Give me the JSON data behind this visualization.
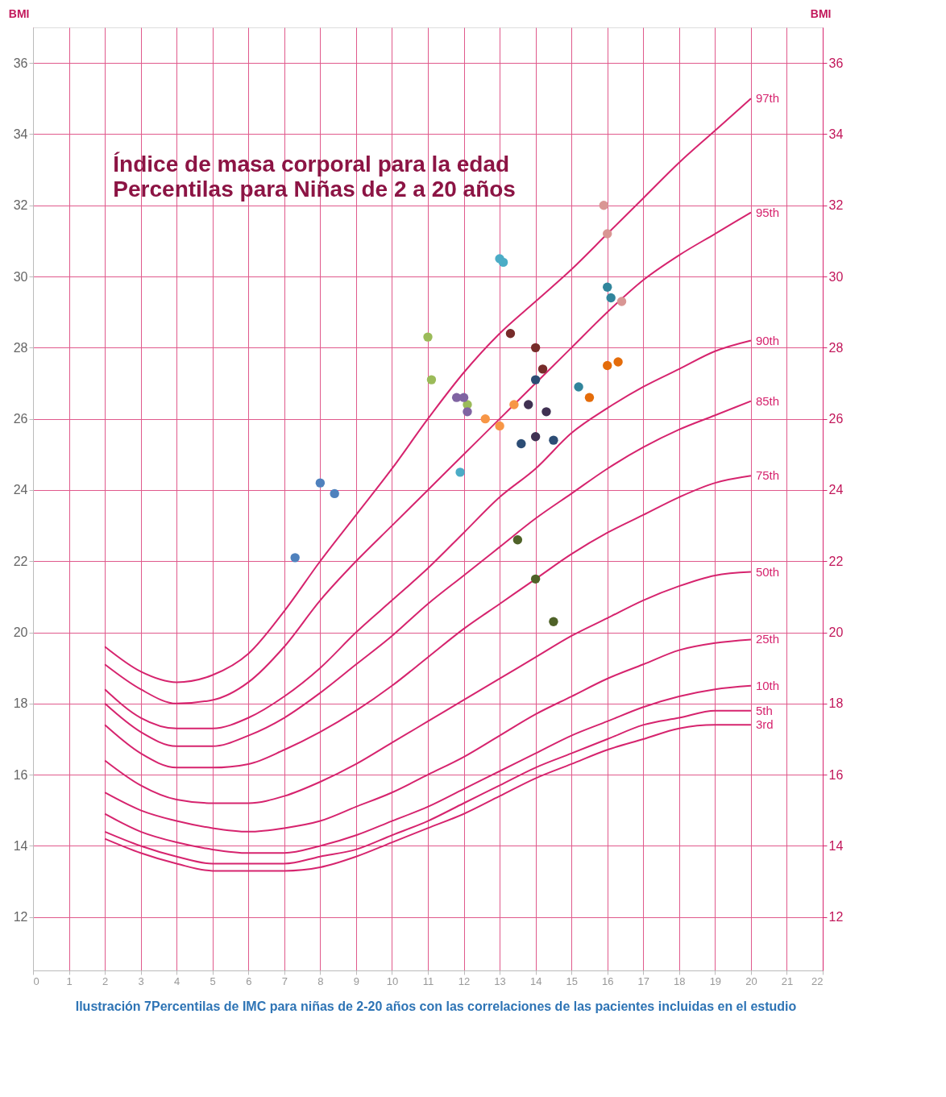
{
  "chart_data": {
    "type": "line",
    "title": "Índice de masa corporal para la edad",
    "subtitle": "Percentilas para  Niñas de 2 a 20 años",
    "ylabel": "BMI",
    "y2label": "BMI",
    "xlim": [
      0,
      22
    ],
    "xticks": [
      0,
      1,
      2,
      3,
      4,
      5,
      6,
      7,
      8,
      9,
      10,
      11,
      12,
      13,
      14,
      15,
      16,
      17,
      18,
      19,
      20,
      21,
      22
    ],
    "ylim": [
      10.5,
      37
    ],
    "yticks": [
      12,
      14,
      16,
      18,
      20,
      22,
      24,
      26,
      28,
      30,
      32,
      34,
      36
    ],
    "y2lim": [
      10.5,
      37
    ],
    "y2ticks": [
      12,
      14,
      16,
      18,
      20,
      22,
      24,
      26,
      28,
      30,
      32,
      34,
      36
    ],
    "grid": true,
    "line_style": "solid",
    "annotations": [
      "Ilustración 7Percentilas de IMC para niñas de 2-20 años con las correlaciones de las pacientes incluidas en el estudio"
    ],
    "series": [
      {
        "name": "97th",
        "type": "line",
        "color": "#d6246e",
        "x": [
          2,
          3,
          4,
          5,
          6,
          7,
          8,
          9,
          10,
          11,
          12,
          13,
          14,
          15,
          16,
          17,
          18,
          19,
          20
        ],
        "values": [
          19.6,
          18.9,
          18.6,
          18.8,
          19.4,
          20.6,
          22.0,
          23.3,
          24.6,
          26.0,
          27.3,
          28.4,
          29.3,
          30.2,
          31.2,
          32.2,
          33.2,
          34.1,
          35.0
        ]
      },
      {
        "name": "95th",
        "type": "line",
        "color": "#d6246e",
        "x": [
          2,
          3,
          4,
          5,
          6,
          7,
          8,
          9,
          10,
          11,
          12,
          13,
          14,
          15,
          16,
          17,
          18,
          19,
          20
        ],
        "values": [
          19.1,
          18.4,
          18.0,
          18.1,
          18.6,
          19.6,
          20.9,
          22.0,
          23.0,
          24.0,
          25.0,
          26.0,
          27.0,
          28.0,
          29.0,
          29.9,
          30.6,
          31.2,
          31.8
        ]
      },
      {
        "name": "90th",
        "type": "line",
        "color": "#d6246e",
        "x": [
          2,
          3,
          4,
          5,
          6,
          7,
          8,
          9,
          10,
          11,
          12,
          13,
          14,
          15,
          16,
          17,
          18,
          19,
          20
        ],
        "values": [
          18.4,
          17.6,
          17.3,
          17.3,
          17.6,
          18.2,
          19.0,
          20.0,
          20.9,
          21.8,
          22.8,
          23.8,
          24.6,
          25.6,
          26.3,
          26.9,
          27.4,
          27.9,
          28.2
        ]
      },
      {
        "name": "85th",
        "type": "line",
        "color": "#d6246e",
        "x": [
          2,
          3,
          4,
          5,
          6,
          7,
          8,
          9,
          10,
          11,
          12,
          13,
          14,
          15,
          16,
          17,
          18,
          19,
          20
        ],
        "values": [
          18.0,
          17.2,
          16.8,
          16.8,
          17.1,
          17.6,
          18.3,
          19.1,
          19.9,
          20.8,
          21.6,
          22.4,
          23.2,
          23.9,
          24.6,
          25.2,
          25.7,
          26.1,
          26.5
        ]
      },
      {
        "name": "75th",
        "type": "line",
        "color": "#d6246e",
        "x": [
          2,
          3,
          4,
          5,
          6,
          7,
          8,
          9,
          10,
          11,
          12,
          13,
          14,
          15,
          16,
          17,
          18,
          19,
          20
        ],
        "values": [
          17.4,
          16.6,
          16.2,
          16.2,
          16.3,
          16.7,
          17.2,
          17.8,
          18.5,
          19.3,
          20.1,
          20.8,
          21.5,
          22.2,
          22.8,
          23.3,
          23.8,
          24.2,
          24.4
        ]
      },
      {
        "name": "50th",
        "type": "line",
        "color": "#d6246e",
        "x": [
          2,
          3,
          4,
          5,
          6,
          7,
          8,
          9,
          10,
          11,
          12,
          13,
          14,
          15,
          16,
          17,
          18,
          19,
          20
        ],
        "values": [
          16.4,
          15.7,
          15.3,
          15.2,
          15.2,
          15.4,
          15.8,
          16.3,
          16.9,
          17.5,
          18.1,
          18.7,
          19.3,
          19.9,
          20.4,
          20.9,
          21.3,
          21.6,
          21.7
        ]
      },
      {
        "name": "25th",
        "type": "line",
        "color": "#d6246e",
        "x": [
          2,
          3,
          4,
          5,
          6,
          7,
          8,
          9,
          10,
          11,
          12,
          13,
          14,
          15,
          16,
          17,
          18,
          19,
          20
        ],
        "values": [
          15.5,
          15.0,
          14.7,
          14.5,
          14.4,
          14.5,
          14.7,
          15.1,
          15.5,
          16.0,
          16.5,
          17.1,
          17.7,
          18.2,
          18.7,
          19.1,
          19.5,
          19.7,
          19.8
        ]
      },
      {
        "name": "10th",
        "type": "line",
        "color": "#d6246e",
        "x": [
          2,
          3,
          4,
          5,
          6,
          7,
          8,
          9,
          10,
          11,
          12,
          13,
          14,
          15,
          16,
          17,
          18,
          19,
          20
        ],
        "values": [
          14.9,
          14.4,
          14.1,
          13.9,
          13.8,
          13.8,
          14.0,
          14.3,
          14.7,
          15.1,
          15.6,
          16.1,
          16.6,
          17.1,
          17.5,
          17.9,
          18.2,
          18.4,
          18.5
        ]
      },
      {
        "name": "5th",
        "type": "line",
        "color": "#d6246e",
        "x": [
          2,
          3,
          4,
          5,
          6,
          7,
          8,
          9,
          10,
          11,
          12,
          13,
          14,
          15,
          16,
          17,
          18,
          19,
          20
        ],
        "values": [
          14.4,
          14.0,
          13.7,
          13.5,
          13.5,
          13.5,
          13.7,
          13.9,
          14.3,
          14.7,
          15.2,
          15.7,
          16.2,
          16.6,
          17.0,
          17.4,
          17.6,
          17.8,
          17.8
        ]
      },
      {
        "name": "3rd",
        "type": "line",
        "color": "#d6246e",
        "x": [
          2,
          3,
          4,
          5,
          6,
          7,
          8,
          9,
          10,
          11,
          12,
          13,
          14,
          15,
          16,
          17,
          18,
          19,
          20
        ],
        "values": [
          14.2,
          13.8,
          13.5,
          13.3,
          13.3,
          13.3,
          13.4,
          13.7,
          14.1,
          14.5,
          14.9,
          15.4,
          15.9,
          16.3,
          16.7,
          17.0,
          17.3,
          17.4,
          17.4
        ]
      },
      {
        "type": "scatter",
        "color": "#4f81bd",
        "x": [
          7.3,
          8.0,
          8.4
        ],
        "values": [
          22.1,
          24.2,
          23.9
        ]
      },
      {
        "type": "scatter",
        "color": "#9bbb59",
        "x": [
          11.0,
          11.1,
          12.1
        ],
        "values": [
          28.3,
          27.1,
          26.4
        ]
      },
      {
        "type": "scatter",
        "color": "#8064a2",
        "x": [
          11.8,
          12.0,
          12.1
        ],
        "values": [
          26.6,
          26.6,
          26.2
        ]
      },
      {
        "type": "scatter",
        "color": "#4bacc6",
        "x": [
          13.0,
          13.1,
          11.9
        ],
        "values": [
          30.5,
          30.4,
          24.5
        ]
      },
      {
        "type": "scatter",
        "color": "#f79646",
        "x": [
          12.6,
          13.0,
          13.4
        ],
        "values": [
          26.0,
          25.8,
          26.4
        ]
      },
      {
        "type": "scatter",
        "color": "#772c2a",
        "x": [
          13.3,
          14.0,
          14.2
        ],
        "values": [
          28.4,
          28.0,
          27.4
        ]
      },
      {
        "type": "scatter",
        "color": "#2c4d75",
        "x": [
          14.0,
          13.6,
          14.5
        ],
        "values": [
          27.1,
          25.3,
          25.4
        ]
      },
      {
        "type": "scatter",
        "color": "#403152",
        "x": [
          13.8,
          14.0,
          14.3
        ],
        "values": [
          26.4,
          25.5,
          26.2
        ]
      },
      {
        "type": "scatter",
        "color": "#4f6228",
        "x": [
          13.5,
          14.0,
          14.5
        ],
        "values": [
          22.6,
          21.5,
          20.3
        ]
      },
      {
        "type": "scatter",
        "color": "#31859c",
        "x": [
          15.2,
          16.0,
          16.1
        ],
        "values": [
          26.9,
          29.7,
          29.4
        ]
      },
      {
        "type": "scatter",
        "color": "#e46c0a",
        "x": [
          15.5,
          16.0,
          16.3
        ],
        "values": [
          26.6,
          27.5,
          27.6
        ]
      },
      {
        "type": "scatter",
        "color": "#d99694",
        "x": [
          15.9,
          16.0,
          16.4
        ],
        "values": [
          32.0,
          31.2,
          29.3
        ]
      }
    ]
  }
}
